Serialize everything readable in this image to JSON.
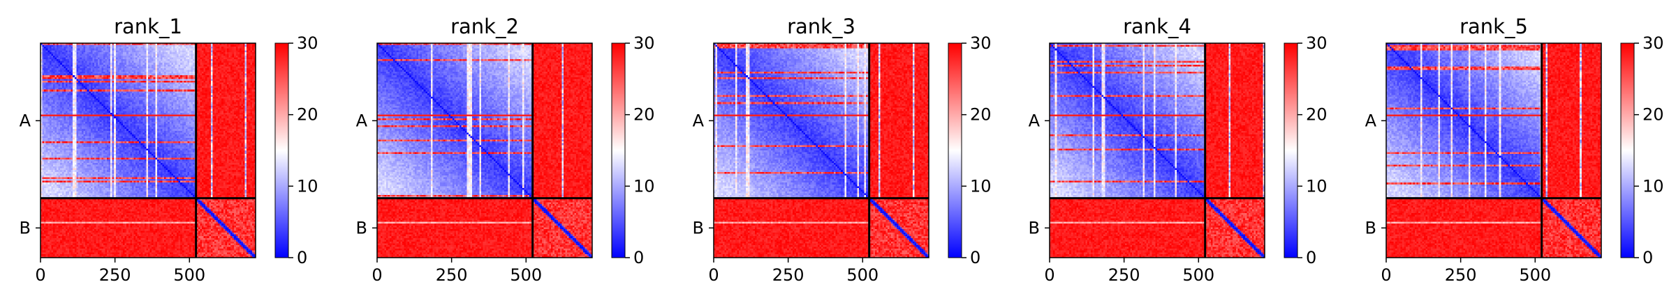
{
  "chart_data": [
    {
      "type": "heatmap",
      "title": "rank_1",
      "chains": [
        {
          "label": "A",
          "start": 0,
          "end": 522
        },
        {
          "label": "B",
          "start": 522,
          "end": 722
        }
      ],
      "xticks": [
        0,
        250,
        500
      ],
      "xticklabels": [
        "0",
        "250",
        "500"
      ],
      "yticklabels": [
        "A",
        "B"
      ],
      "colorbar": {
        "min": 0,
        "max": 30,
        "ticks": [
          0,
          10,
          20,
          30
        ],
        "ticklabels": [
          "0",
          "10",
          "20",
          "30"
        ],
        "colormap": "bwr"
      },
      "blocks": {
        "AA": "mostly low (blue, ~0-10) with red horizontal bands and white vertical stripes",
        "AB": 30,
        "BA": 30,
        "BB": "low diagonal, high elsewhere"
      }
    },
    {
      "type": "heatmap",
      "title": "rank_2",
      "chains": [
        {
          "label": "A",
          "start": 0,
          "end": 522
        },
        {
          "label": "B",
          "start": 522,
          "end": 722
        }
      ],
      "xticks": [
        0,
        250,
        500
      ],
      "xticklabels": [
        "0",
        "250",
        "500"
      ],
      "yticklabels": [
        "A",
        "B"
      ],
      "colorbar": {
        "min": 0,
        "max": 30,
        "ticks": [
          0,
          10,
          20,
          30
        ],
        "ticklabels": [
          "0",
          "10",
          "20",
          "30"
        ],
        "colormap": "bwr"
      },
      "blocks": {
        "AA": "mostly low (blue, ~0-10) with red horizontal bands and white vertical stripes",
        "AB": 30,
        "BA": 30,
        "BB": "low diagonal, high elsewhere"
      }
    },
    {
      "type": "heatmap",
      "title": "rank_3",
      "chains": [
        {
          "label": "A",
          "start": 0,
          "end": 522
        },
        {
          "label": "B",
          "start": 522,
          "end": 722
        }
      ],
      "xticks": [
        0,
        250,
        500
      ],
      "xticklabels": [
        "0",
        "250",
        "500"
      ],
      "yticklabels": [
        "A",
        "B"
      ],
      "colorbar": {
        "min": 0,
        "max": 30,
        "ticks": [
          0,
          10,
          20,
          30
        ],
        "ticklabels": [
          "0",
          "10",
          "20",
          "30"
        ],
        "colormap": "bwr"
      },
      "blocks": {
        "AA": "mostly low (blue, ~0-10) with red horizontal bands and white vertical stripes",
        "AB": 30,
        "BA": 30,
        "BB": "low diagonal, high elsewhere"
      }
    },
    {
      "type": "heatmap",
      "title": "rank_4",
      "chains": [
        {
          "label": "A",
          "start": 0,
          "end": 522
        },
        {
          "label": "B",
          "start": 522,
          "end": 722
        }
      ],
      "xticks": [
        0,
        250,
        500
      ],
      "xticklabels": [
        "0",
        "250",
        "500"
      ],
      "yticklabels": [
        "A",
        "B"
      ],
      "colorbar": {
        "min": 0,
        "max": 30,
        "ticks": [
          0,
          10,
          20,
          30
        ],
        "ticklabels": [
          "0",
          "10",
          "20",
          "30"
        ],
        "colormap": "bwr"
      },
      "blocks": {
        "AA": "mostly low (blue, ~0-10) with red horizontal bands and white vertical stripes",
        "AB": 30,
        "BA": 30,
        "BB": "low diagonal, high elsewhere"
      }
    },
    {
      "type": "heatmap",
      "title": "rank_5",
      "chains": [
        {
          "label": "A",
          "start": 0,
          "end": 522
        },
        {
          "label": "B",
          "start": 522,
          "end": 722
        }
      ],
      "xticks": [
        0,
        250,
        500
      ],
      "xticklabels": [
        "0",
        "250",
        "500"
      ],
      "yticklabels": [
        "A",
        "B"
      ],
      "colorbar": {
        "min": 0,
        "max": 30,
        "ticks": [
          0,
          10,
          20,
          30
        ],
        "ticklabels": [
          "0",
          "10",
          "20",
          "30"
        ],
        "colormap": "bwr"
      },
      "blocks": {
        "AA": "mostly low (blue, ~0-10) with red horizontal bands and white vertical stripes",
        "AB": 30,
        "BA": 30,
        "BB": "low diagonal, high elsewhere"
      }
    }
  ],
  "colors": {
    "low": "#0000ff",
    "mid": "#ffffff",
    "high": "#ff0000",
    "divider": "#000000"
  }
}
